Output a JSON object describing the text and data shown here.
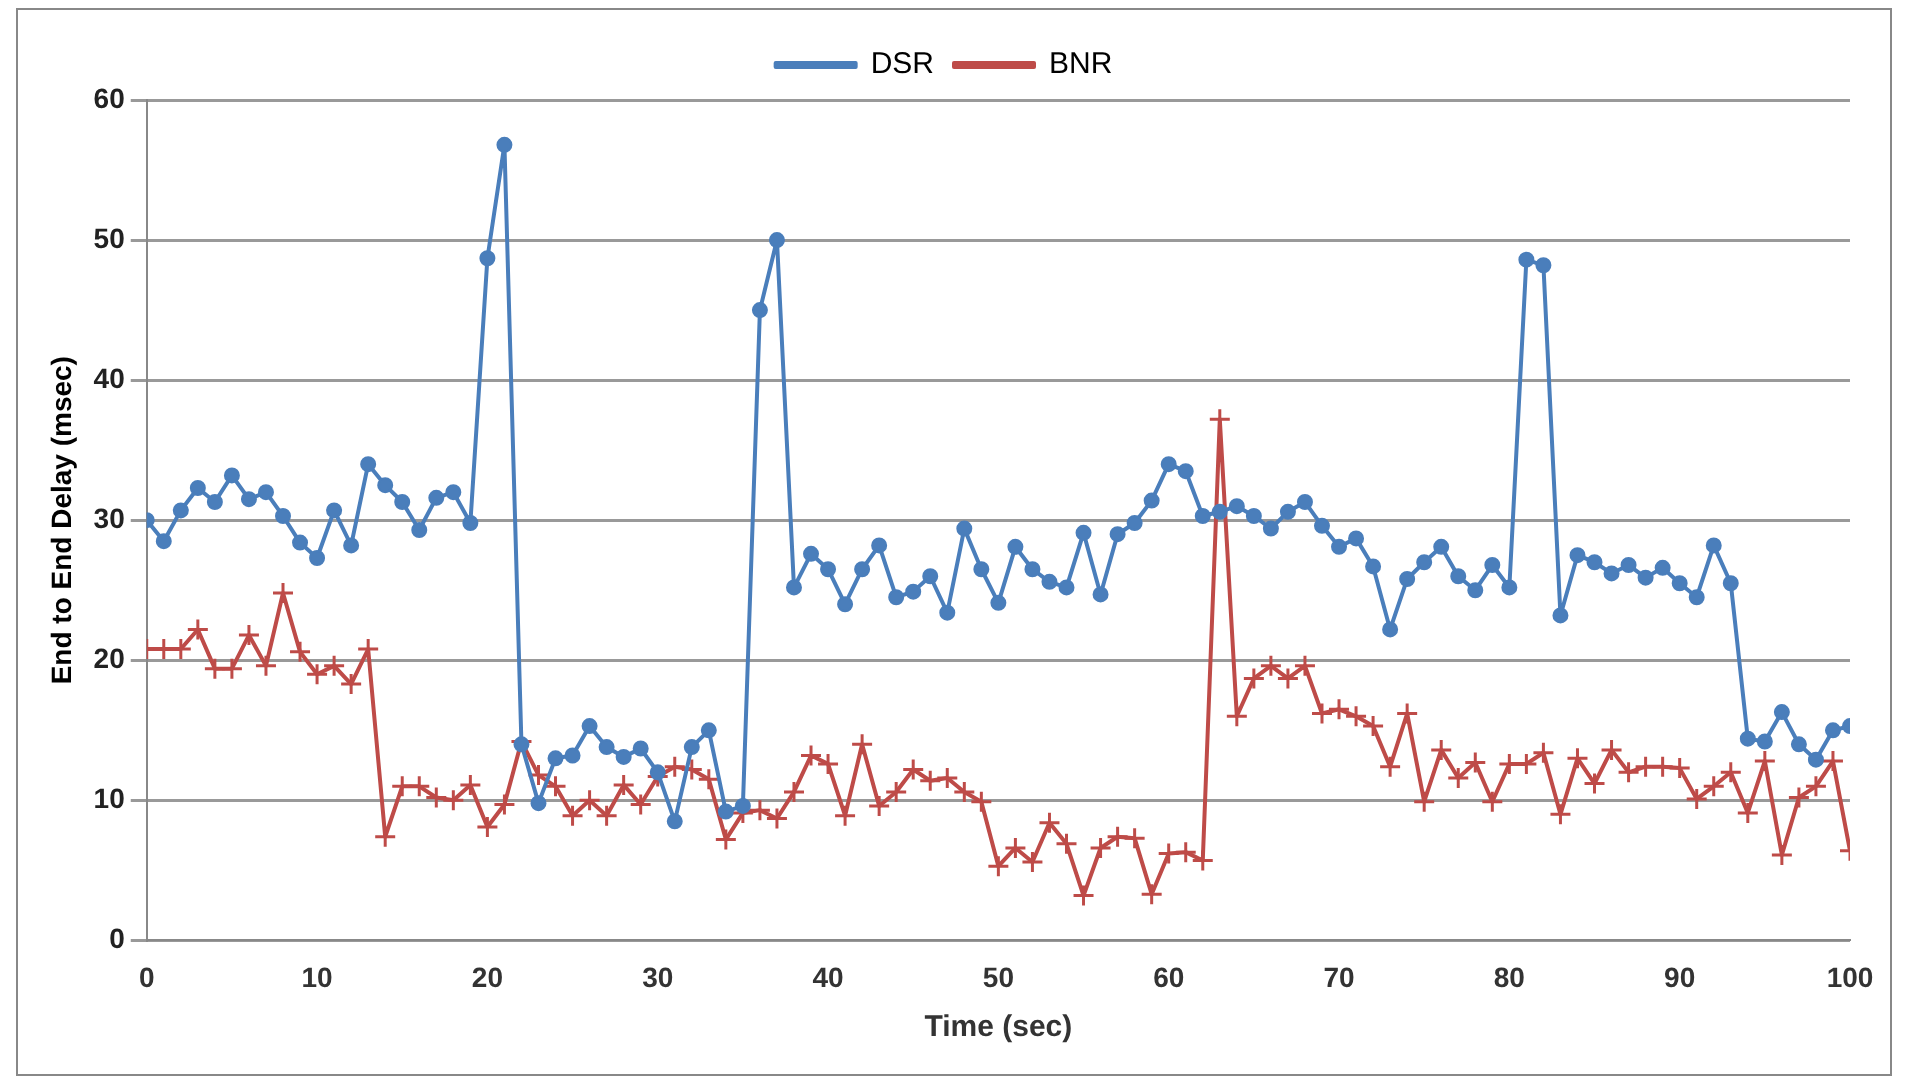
{
  "chart_data": {
    "type": "line",
    "xlabel": "Time (sec)",
    "ylabel": "End to End Delay (msec)",
    "x": [
      0,
      1,
      2,
      3,
      4,
      5,
      6,
      7,
      8,
      9,
      10,
      11,
      12,
      13,
      14,
      15,
      16,
      17,
      18,
      19,
      20,
      21,
      22,
      23,
      24,
      25,
      26,
      27,
      28,
      29,
      30,
      31,
      32,
      33,
      34,
      35,
      36,
      37,
      38,
      39,
      40,
      41,
      42,
      43,
      44,
      45,
      46,
      47,
      48,
      49,
      50,
      51,
      52,
      53,
      54,
      55,
      56,
      57,
      58,
      59,
      60,
      61,
      62,
      63,
      64,
      65,
      66,
      67,
      68,
      69,
      70,
      71,
      72,
      73,
      74,
      75,
      76,
      77,
      78,
      79,
      80,
      81,
      82,
      83,
      84,
      85,
      86,
      87,
      88,
      89,
      90,
      91,
      92,
      93,
      94,
      95,
      96,
      97,
      98,
      99,
      100
    ],
    "xlim": [
      0,
      100
    ],
    "xticks": [
      0,
      10,
      20,
      30,
      40,
      50,
      60,
      70,
      80,
      90,
      100
    ],
    "ylim": [
      0,
      60
    ],
    "yticks": [
      0,
      10,
      20,
      30,
      40,
      50,
      60
    ],
    "grid": "y",
    "legend": "top",
    "line_style": "solid",
    "series": [
      {
        "name": "DSR",
        "color": "#4a7ebb",
        "marker": "circle",
        "values": [
          30,
          28.5,
          30.7,
          32.3,
          31.3,
          33.2,
          31.5,
          32,
          30.3,
          28.4,
          27.3,
          30.7,
          28.2,
          34,
          32.5,
          31.3,
          29.3,
          31.6,
          32,
          29.8,
          48.7,
          56.8,
          14,
          9.8,
          13,
          13.2,
          15.3,
          13.8,
          13.1,
          13.7,
          12,
          8.5,
          13.8,
          15,
          9.2,
          9.6,
          45,
          50,
          25.2,
          27.6,
          26.5,
          24,
          26.5,
          28.2,
          24.5,
          24.9,
          26,
          23.4,
          29.4,
          26.5,
          24.1,
          28.1,
          26.5,
          25.6,
          25.2,
          29.1,
          24.7,
          29,
          29.8,
          31.4,
          34,
          33.5,
          30.3,
          30.6,
          31,
          30.3,
          29.4,
          30.6,
          31.3,
          29.6,
          28.1,
          28.7,
          26.7,
          22.2,
          25.8,
          27,
          28.1,
          26,
          25,
          26.8,
          25.2,
          48.6,
          48.2,
          23.2,
          27.5,
          27,
          26.2,
          26.8,
          25.9,
          26.6,
          25.5,
          24.5,
          28.2,
          25.5,
          14.4,
          14.2,
          16.3,
          14,
          12.9,
          15,
          15.3
        ]
      },
      {
        "name": "BNR",
        "color": "#be4b48",
        "marker": "cross",
        "values": [
          20.8,
          20.8,
          20.8,
          22.2,
          19.4,
          19.4,
          21.8,
          19.6,
          24.8,
          20.6,
          19,
          19.6,
          18.3,
          20.8,
          7.4,
          11,
          11,
          10.2,
          10,
          11.1,
          8.1,
          9.7,
          14.2,
          11.8,
          11,
          8.9,
          10,
          8.9,
          11.1,
          9.7,
          11.7,
          12.4,
          12.2,
          11.5,
          7.2,
          9.1,
          9.3,
          8.7,
          10.6,
          13.2,
          12.6,
          8.9,
          14,
          9.6,
          10.6,
          12.2,
          11.4,
          11.6,
          10.6,
          9.9,
          5.3,
          6.6,
          5.6,
          8.4,
          6.9,
          3.2,
          6.6,
          7.4,
          7.3,
          3.3,
          6.2,
          6.3,
          5.7,
          37.2,
          16,
          18.7,
          19.6,
          18.7,
          19.6,
          16.2,
          16.5,
          16,
          15.3,
          12.4,
          16.2,
          9.9,
          13.6,
          11.6,
          12.7,
          9.9,
          12.6,
          12.6,
          13.4,
          9,
          13,
          11.2,
          13.6,
          12,
          12.4,
          12.4,
          12.3,
          10.1,
          11,
          12,
          9.1,
          12.8,
          6.1,
          10.2,
          11,
          12.8,
          6.4
        ]
      }
    ]
  }
}
